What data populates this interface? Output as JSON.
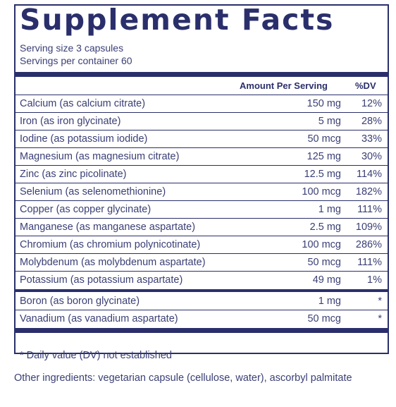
{
  "title": "Supplement Facts",
  "serving_size": "Serving size  3 capsules",
  "servings_per_container": "Servings per container  60",
  "headers": {
    "amount": "Amount Per Serving",
    "dv": "%DV"
  },
  "rows": [
    {
      "name": "Calcium (as calcium citrate)",
      "amount": "150 mg",
      "dv": "12%"
    },
    {
      "name": "Iron (as iron glycinate)",
      "amount": "5 mg",
      "dv": "28%"
    },
    {
      "name": "Iodine (as potassium iodide)",
      "amount": "50 mcg",
      "dv": "33%"
    },
    {
      "name": "Magnesium (as magnesium citrate)",
      "amount": "125 mg",
      "dv": "30%"
    },
    {
      "name": "Zinc (as zinc picolinate)",
      "amount": "12.5 mg",
      "dv": "114%"
    },
    {
      "name": "Selenium (as selenomethionine)",
      "amount": "100 mcg",
      "dv": "182%"
    },
    {
      "name": "Copper (as copper glycinate)",
      "amount": "1 mg",
      "dv": "111%"
    },
    {
      "name": "Manganese (as manganese aspartate)",
      "amount": "2.5 mg",
      "dv": "109%"
    },
    {
      "name": "Chromium (as chromium polynicotinate)",
      "amount": "100 mcg",
      "dv": "286%"
    },
    {
      "name": "Molybdenum (as molybdenum aspartate)",
      "amount": "50 mcg",
      "dv": "111%"
    },
    {
      "name": "Potassium (as potassium aspartate)",
      "amount": "49 mg",
      "dv": "1%"
    }
  ],
  "rows_no_dv": [
    {
      "name": "Boron (as boron glycinate)",
      "amount": "1 mg",
      "dv": "*"
    },
    {
      "name": "Vanadium (as vanadium aspartate)",
      "amount": "50 mcg",
      "dv": "*"
    }
  ],
  "footnote": "* Daily value (DV) not established",
  "other_ingredients": "Other ingredients: vegetarian capsule (cellulose, water), ascorbyl palmitate"
}
